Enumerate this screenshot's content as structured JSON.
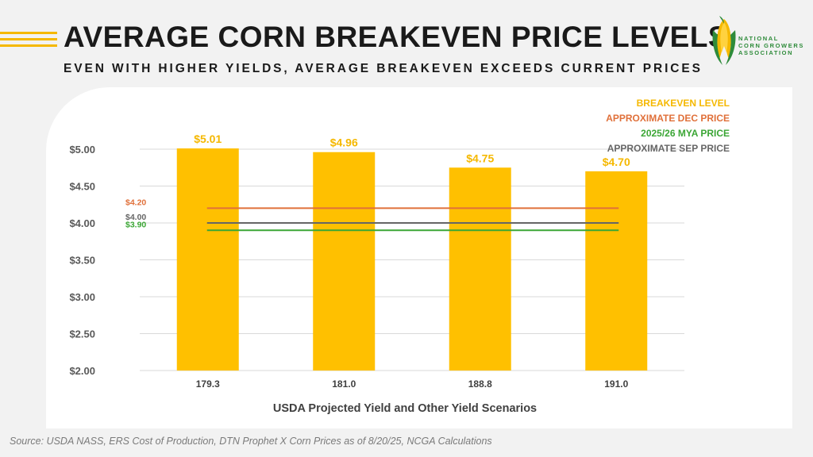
{
  "header": {
    "title": "AVERAGE CORN BREAKEVEN PRICE LEVELS",
    "subtitle": "EVEN WITH HIGHER YIELDS, AVERAGE BREAKEVEN EXCEEDS CURRENT PRICES"
  },
  "logo": {
    "icon": "corn-icon",
    "lines": [
      "NATIONAL",
      "CORN GROWERS",
      "ASSOCIATION"
    ]
  },
  "source": "Source: USDA NASS, ERS Cost of Production, DTN Prophet X Corn Prices as of 8/20/25, NCGA Calculations",
  "colors": {
    "bar": "#FFC000",
    "dec": "#E0703A",
    "mya": "#3BA635",
    "sep": "#666666"
  },
  "chart_data": {
    "type": "bar",
    "categories": [
      "179.3",
      "181.0",
      "188.8",
      "191.0"
    ],
    "xlabel": "USDA Projected Yield and Other Yield Scenarios",
    "ylabel": "",
    "ylim": [
      2.0,
      5.0
    ],
    "yticks": [
      "$2.00",
      "$2.50",
      "$3.00",
      "$3.50",
      "$4.00",
      "$4.50",
      "$5.00"
    ],
    "ytick_values": [
      2.0,
      2.5,
      3.0,
      3.5,
      4.0,
      4.5,
      5.0
    ],
    "grid": true,
    "legend_position": "top-right",
    "series": [
      {
        "name": "BREAKEVEN LEVEL",
        "kind": "bar",
        "values": [
          5.01,
          4.96,
          4.75,
          4.7
        ],
        "labels": [
          "$5.01",
          "$4.96",
          "$4.75",
          "$4.70"
        ],
        "color": "#FFC000"
      },
      {
        "name": "APPROXIMATE DEC PRICE",
        "kind": "line",
        "value": 4.2,
        "label": "$4.20",
        "color": "#E0703A"
      },
      {
        "name": "2025/26 MYA PRICE",
        "kind": "line",
        "value": 3.9,
        "label": "$3.90",
        "color": "#3BA635"
      },
      {
        "name": "APPROXIMATE SEP PRICE",
        "kind": "line",
        "value": 4.0,
        "label": "$4.00",
        "color": "#666666"
      }
    ],
    "legend_order": [
      "BREAKEVEN LEVEL",
      "APPROXIMATE DEC PRICE",
      "2025/26 MYA PRICE",
      "APPROXIMATE SEP PRICE"
    ],
    "legend_colors": [
      "#F5B800",
      "#E0703A",
      "#3BA635",
      "#666666"
    ]
  }
}
